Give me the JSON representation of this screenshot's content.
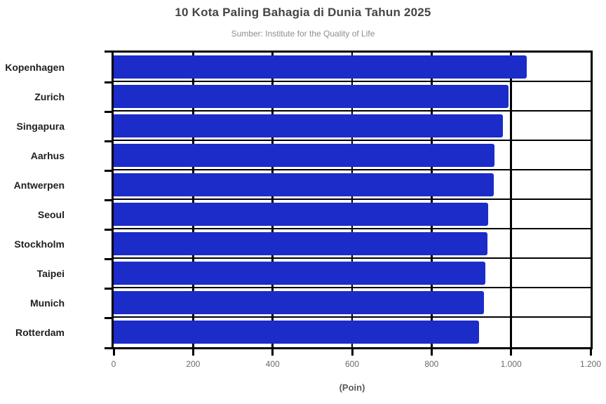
{
  "title": "10 Kota Paling Bahagia di Dunia Tahun 2025",
  "subtitle": "Sumber: Institute for the Quality of Life",
  "chart_data": {
    "type": "bar",
    "orientation": "horizontal",
    "title": "10 Kota Paling Bahagia di Dunia Tahun 2025",
    "subtitle": "Sumber: Institute for the Quality of Life",
    "categories": [
      "Kopenhagen",
      "Zurich",
      "Singapura",
      "Aarhus",
      "Antwerpen",
      "Seoul",
      "Stockholm",
      "Taipei",
      "Munich",
      "Rotterdam"
    ],
    "values": [
      1039,
      993,
      979,
      958,
      956,
      942,
      940,
      936,
      931,
      920
    ],
    "xlabel": "(Poin)",
    "ylabel": "",
    "xlim": [
      0,
      1200
    ],
    "xticks": [
      0,
      200,
      400,
      600,
      800,
      1000,
      1200
    ],
    "xtick_labels": [
      "0",
      "200",
      "400",
      "600",
      "800",
      "1.000",
      "1.200"
    ],
    "grid": true,
    "bar_color": "#1b2cc9",
    "gridline_color": "#000000",
    "legend": "none"
  }
}
